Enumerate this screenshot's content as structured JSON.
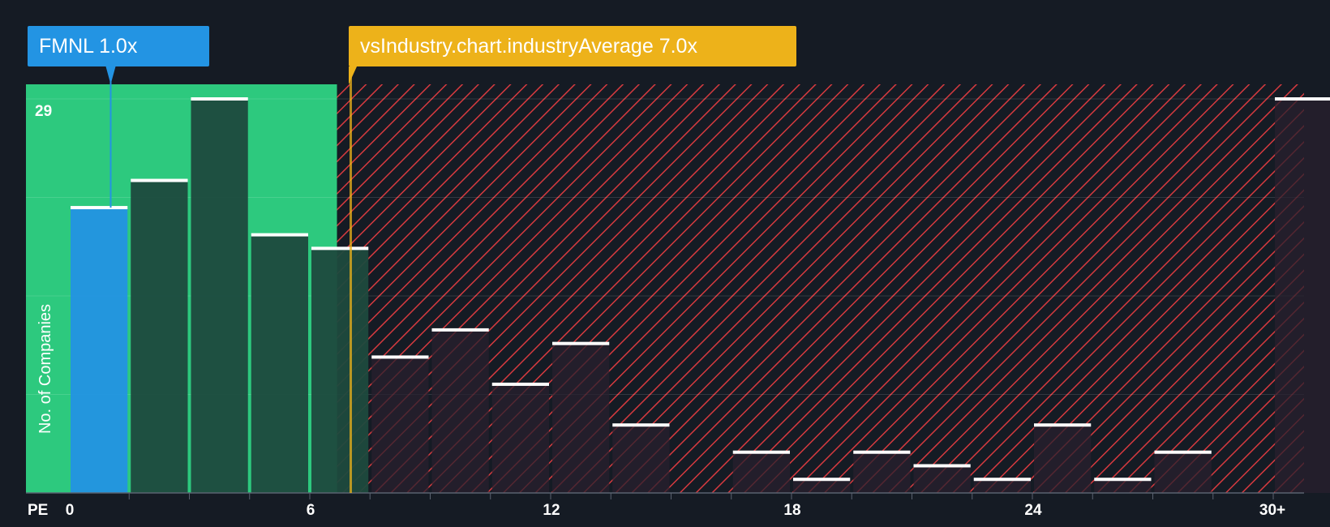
{
  "chart_data": {
    "type": "bar",
    "metric": "PE",
    "xlabel": "PE",
    "ylabel": "No. of Companies",
    "y_max_label": "29",
    "ylim": [
      0,
      29
    ],
    "xlim": [
      0,
      30
    ],
    "x_ticks": [
      {
        "value": 0,
        "label": "0"
      },
      {
        "value": 6,
        "label": "6"
      },
      {
        "value": 12,
        "label": "12"
      },
      {
        "value": 18,
        "label": "18"
      },
      {
        "value": 24,
        "label": "24"
      },
      {
        "value": 30,
        "label": "30+"
      }
    ],
    "bin_width": 1.5,
    "bins": [
      {
        "start": 0.0,
        "value": 21,
        "highlight": true
      },
      {
        "start": 1.5,
        "value": 23
      },
      {
        "start": 3.0,
        "value": 29
      },
      {
        "start": 4.5,
        "value": 19
      },
      {
        "start": 6.0,
        "value": 18
      },
      {
        "start": 7.5,
        "value": 10
      },
      {
        "start": 9.0,
        "value": 12
      },
      {
        "start": 10.5,
        "value": 8
      },
      {
        "start": 12.0,
        "value": 11
      },
      {
        "start": 13.5,
        "value": 5
      },
      {
        "start": 16.5,
        "value": 3
      },
      {
        "start": 18.0,
        "value": 1
      },
      {
        "start": 19.5,
        "value": 3
      },
      {
        "start": 21.0,
        "value": 2
      },
      {
        "start": 22.5,
        "value": 1
      },
      {
        "start": 24.0,
        "value": 5
      },
      {
        "start": 25.5,
        "value": 1
      },
      {
        "start": 27.0,
        "value": 3
      },
      {
        "start": 30.0,
        "value": 29
      }
    ],
    "company": {
      "ticker": "FMNL",
      "value": 1.0,
      "label": "FMNL 1.0x"
    },
    "industry_average": {
      "value": 7.0,
      "label": "vsIndustry.chart.industryAverage 7.0x"
    },
    "colors": {
      "background": "#151b24",
      "undervalued_zone": "#2dc97e",
      "overvalued_hatch": "#d63a3f",
      "company_bar": "#2394e3",
      "other_bar": "#1e4a3e",
      "industry_line": "#edb21a",
      "bar_cap": "#ffffff"
    }
  }
}
